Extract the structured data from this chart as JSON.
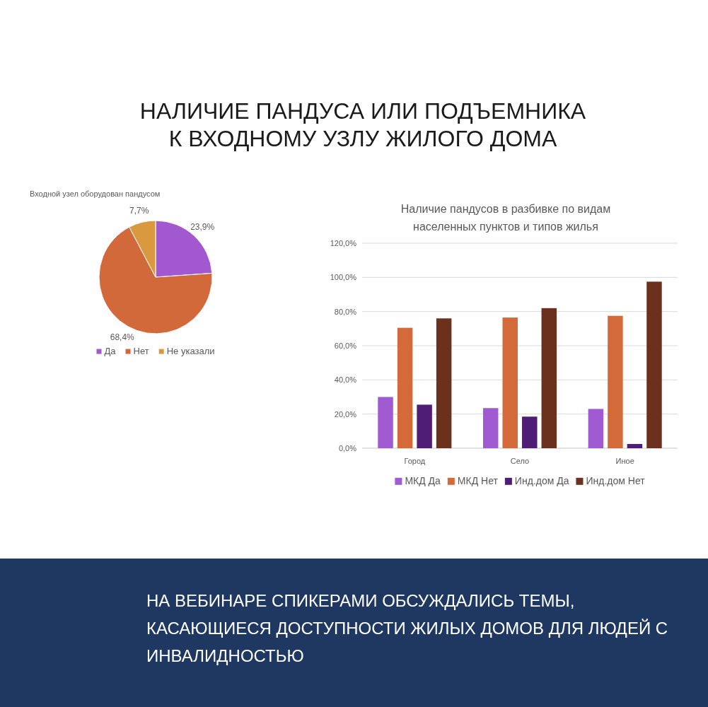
{
  "chart_data": [
    {
      "type": "pie",
      "title": "НАЛИЧИЕ ПАНДУСА ИЛИ ПОДЪЕМНИКА К ВХОДНОМУ УЗЛУ ЖИЛОГО ДОМА",
      "subtitle": "Входной узел оборудован пандусом",
      "categories": [
        "Да",
        "Нет",
        "Не указали"
      ],
      "values": [
        23.9,
        68.4,
        7.7
      ],
      "colors": [
        "#a259d0",
        "#d2693a",
        "#d99a3f"
      ],
      "value_labels": [
        "23,9%",
        "68,4%",
        "7,7%"
      ],
      "legend": "bottom",
      "annotations": [
        "НА ВЕБИНАРЕ СПИКЕРАМИ ОБСУЖДАЛИСЬ ТЕМЫ, КАСАЮЩИЕСЯ ДОСТУПНОСТИ ЖИЛЫХ ДОМОВ ДЛЯ ЛЮДЕЙ С ИНВАЛИДНОСТЬЮ"
      ]
    },
    {
      "type": "bar",
      "title": "Наличие пандусов в разбивке по видам населенных пунктов и типов жилья",
      "categories": [
        "Город",
        "Село",
        "Иное"
      ],
      "series": [
        {
          "name": "МКД Да",
          "color": "#a05ad2",
          "values": [
            30,
            23.5,
            23
          ]
        },
        {
          "name": "МКД Нет",
          "color": "#d4693a",
          "values": [
            70.5,
            76.5,
            77.5
          ]
        },
        {
          "name": "Инд.дом Да",
          "color": "#4f1d75",
          "values": [
            25.5,
            18.5,
            2.5
          ]
        },
        {
          "name": "Инд.дом Нет",
          "color": "#6b311c",
          "values": [
            76,
            82,
            97.5
          ]
        }
      ],
      "ylim": [
        0,
        120
      ],
      "yticks": [
        {
          "value": 0,
          "label": "0,0%"
        },
        {
          "value": 20,
          "label": "20,0%"
        },
        {
          "value": 40,
          "label": "40,0%"
        },
        {
          "value": 60,
          "label": "60,0%"
        },
        {
          "value": 80,
          "label": "80,0%"
        },
        {
          "value": 100,
          "label": "100,0%"
        },
        {
          "value": 120,
          "label": "120,0%"
        }
      ],
      "grid": "y",
      "legend": "bottom"
    }
  ]
}
